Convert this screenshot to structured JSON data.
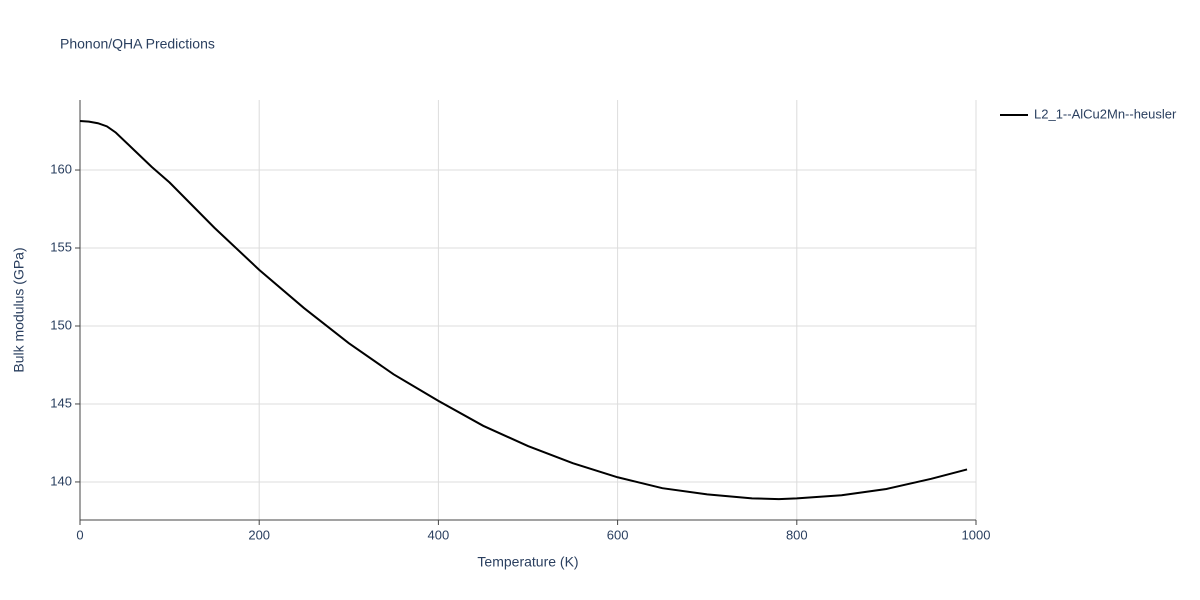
{
  "chart_data": {
    "type": "line",
    "title": "Phonon/QHA Predictions",
    "x_label": "Temperature (K)",
    "y_label": "Bulk modulus (GPa)",
    "x": [
      0,
      10,
      20,
      30,
      40,
      60,
      80,
      100,
      150,
      200,
      250,
      300,
      350,
      400,
      450,
      500,
      550,
      600,
      650,
      700,
      750,
      780,
      800,
      850,
      900,
      950,
      990
    ],
    "series": [
      {
        "name": "L2_1--AlCu2Mn--heusler",
        "color": "#000000",
        "values": [
          163.14,
          163.1,
          163.0,
          162.8,
          162.4,
          161.3,
          160.2,
          159.2,
          156.3,
          153.6,
          151.15,
          148.9,
          146.9,
          145.2,
          143.6,
          142.3,
          141.2,
          140.3,
          139.6,
          139.2,
          138.95,
          138.9,
          138.95,
          139.15,
          139.55,
          140.2,
          140.8
        ]
      }
    ],
    "xlim": [
      0,
      1000
    ],
    "xticks": [
      0,
      200,
      400,
      600,
      800,
      1000
    ],
    "ylim": [
      137.56,
      164.49
    ],
    "yticks": [
      140,
      145,
      150,
      155,
      160
    ],
    "grid": true,
    "legend": "right"
  }
}
